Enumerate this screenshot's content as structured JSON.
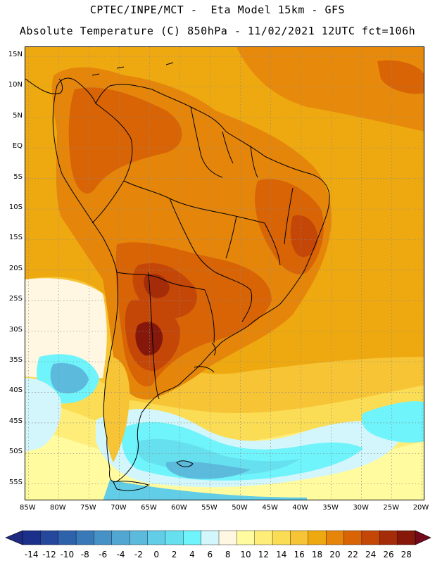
{
  "header": {
    "title_line1": "CPTEC/INPE/MCT -  Eta Model 15km - GFS",
    "title_line2": "Absolute Temperature (C) 850hPa - 11/02/2021 12UTC fct=106h"
  },
  "map": {
    "lat_labels": [
      "15N",
      "10N",
      "5N",
      "EQ",
      "5S",
      "10S",
      "15S",
      "20S",
      "25S",
      "30S",
      "35S",
      "40S",
      "45S",
      "50S",
      "55S"
    ],
    "lat_values": [
      15,
      10,
      5,
      0,
      -5,
      -10,
      -15,
      -20,
      -25,
      -30,
      -35,
      -40,
      -45,
      -50,
      -55
    ],
    "lon_labels": [
      "85W",
      "80W",
      "75W",
      "70W",
      "65W",
      "60W",
      "55W",
      "50W",
      "45W",
      "40W",
      "35W",
      "30W",
      "25W",
      "20W"
    ],
    "lon_values": [
      -85,
      -80,
      -75,
      -70,
      -65,
      -60,
      -55,
      -50,
      -45,
      -40,
      -35,
      -30,
      -25,
      -20
    ],
    "extent": {
      "lon_min": -85.5,
      "lon_max": -19.5,
      "lat_min": -57.8,
      "lat_max": 16.5
    }
  },
  "colorbar": {
    "labels": [
      "-14",
      "-12",
      "-10",
      "-8",
      "-6",
      "-4",
      "-2",
      "0",
      "2",
      "4",
      "6",
      "8",
      "10",
      "12",
      "14",
      "16",
      "18",
      "20",
      "22",
      "24",
      "26",
      "28"
    ],
    "colors": [
      "#1c2f8a",
      "#25479c",
      "#2e62ab",
      "#3a79b8",
      "#4691c6",
      "#52a7d2",
      "#5cbadc",
      "#62cde6",
      "#66e0ef",
      "#6ef4fa",
      "#d2f6fb",
      "#fff7e2",
      "#fffb9e",
      "#ffed7a",
      "#fbdc55",
      "#f6c434",
      "#efa910",
      "#e5860b",
      "#d86406",
      "#c44708",
      "#a52c08",
      "#85180a"
    ],
    "min_color": "#1d2a80",
    "max_color": "#720a1c"
  }
}
